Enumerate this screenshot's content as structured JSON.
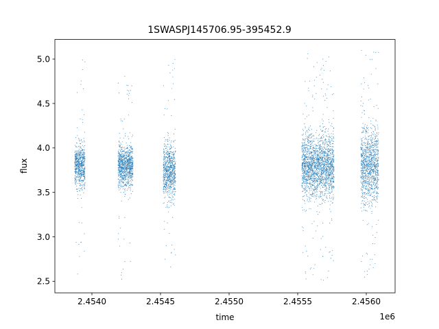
{
  "chart_data": {
    "type": "scatter",
    "title": "1SWASPJ145706.95-395452.9",
    "xlabel": "time",
    "ylabel": "flux",
    "x_offset_label": "1e6",
    "xlim": [
      2453730,
      2456210
    ],
    "ylim": [
      2.37,
      5.22
    ],
    "xticks": [
      2.454,
      2.4545,
      2.455,
      2.4555,
      2.456
    ],
    "xtick_labels": [
      "2.4540",
      "2.4545",
      "2.4550",
      "2.4555",
      "2.4560"
    ],
    "yticks": [
      2.5,
      3.0,
      3.5,
      4.0,
      4.5,
      5.0
    ],
    "ytick_labels": [
      "2.5",
      "3.0",
      "3.5",
      "4.0",
      "4.5",
      "5.0"
    ],
    "grid": false,
    "legend": "none",
    "marker_color": "#1f77b4",
    "observing_seasons": [
      {
        "x_start": 2453875,
        "x_end": 2453950,
        "y_center": 3.8,
        "y_typical": [
          3.35,
          4.2
        ],
        "y_extreme": [
          2.55,
          5.0
        ]
      },
      {
        "x_start": 2454190,
        "x_end": 2454300,
        "y_center": 3.8,
        "y_typical": [
          3.45,
          4.2
        ],
        "y_extreme": [
          2.5,
          4.82
        ]
      },
      {
        "x_start": 2454520,
        "x_end": 2454610,
        "y_center": 3.75,
        "y_typical": [
          3.2,
          4.25
        ],
        "y_extreme": [
          2.6,
          5.1
        ]
      },
      {
        "x_start": 2455530,
        "x_end": 2455765,
        "y_center": 3.8,
        "y_typical": [
          3.15,
          4.35
        ],
        "y_extreme": [
          2.5,
          5.1
        ]
      },
      {
        "x_start": 2455960,
        "x_end": 2456090,
        "y_center": 3.8,
        "y_typical": [
          3.1,
          4.45
        ],
        "y_extreme": [
          2.5,
          5.1
        ]
      }
    ]
  }
}
